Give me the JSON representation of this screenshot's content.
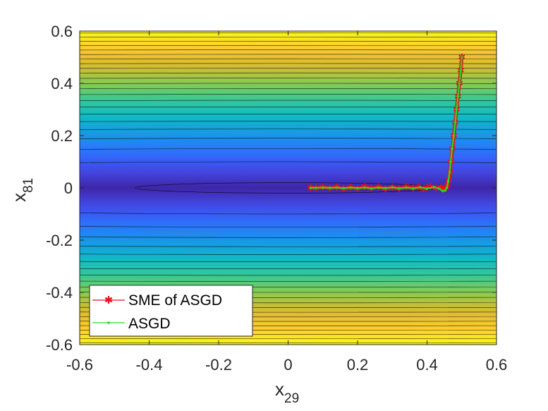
{
  "chart_data": {
    "type": "line",
    "plot_kind": "filled-contour-with-trajectories",
    "title": "",
    "xlabel": "x",
    "xlabel_sub": "29",
    "ylabel": "x",
    "ylabel_sub": "81",
    "xlim": [
      -0.6,
      0.6
    ],
    "ylim": [
      -0.6,
      0.6
    ],
    "xticks": [
      -0.6,
      -0.4,
      -0.2,
      0,
      0.2,
      0.4,
      0.6
    ],
    "yticks": [
      -0.6,
      -0.4,
      -0.2,
      0,
      0.2,
      0.4,
      0.6
    ],
    "xtick_labels": [
      "-0.6",
      "-0.4",
      "-0.2",
      "0",
      "0.2",
      "0.4",
      "0.6"
    ],
    "ytick_labels": [
      "-0.6",
      "-0.4",
      "-0.2",
      "0",
      "0.2",
      "0.4",
      "0.6"
    ],
    "grid": false,
    "legend_position": "bottom-left",
    "colormap": [
      "#3e26a8",
      "#4249e6",
      "#2e6ffe",
      "#1996e8",
      "#0fb7c8",
      "#31c99b",
      "#88cc50",
      "#d6ba2e",
      "#fcc932",
      "#f9fb15"
    ],
    "contour_line_color": "#000000",
    "contour_y_levels": [
      0.02,
      0.1,
      0.15,
      0.19,
      0.225,
      0.255,
      0.283,
      0.31,
      0.335,
      0.358,
      0.38,
      0.4,
      0.42,
      0.44,
      0.458,
      0.476,
      0.494,
      0.511,
      0.528,
      0.545,
      0.561,
      0.577,
      0.593
    ],
    "series": [
      {
        "name": "SME of ASGD",
        "color": "#e8101a",
        "marker": "*",
        "x": [
          0.5,
          0.497,
          0.493,
          0.489,
          0.485,
          0.481,
          0.477,
          0.473,
          0.469,
          0.466,
          0.462,
          0.458,
          0.455,
          0.45,
          0.44,
          0.425,
          0.41,
          0.4,
          0.39,
          0.375,
          0.36,
          0.34,
          0.32,
          0.3,
          0.28,
          0.26,
          0.24,
          0.22,
          0.2,
          0.18,
          0.16,
          0.14,
          0.12,
          0.1,
          0.08,
          0.065
        ],
        "y": [
          0.5,
          0.45,
          0.4,
          0.35,
          0.3,
          0.25,
          0.2,
          0.15,
          0.1,
          0.06,
          0.03,
          0.01,
          0.0,
          -0.005,
          0.002,
          -0.002,
          0.004,
          0.001,
          -0.004,
          0.003,
          -0.002,
          0.004,
          -0.003,
          0.002,
          -0.004,
          0.003,
          -0.002,
          0.004,
          -0.003,
          0.002,
          -0.004,
          0.003,
          -0.002,
          0.003,
          -0.002,
          0.0
        ]
      },
      {
        "name": "ASGD",
        "color": "#22dd22",
        "marker": ".",
        "x": [
          0.5,
          0.497,
          0.493,
          0.489,
          0.485,
          0.481,
          0.477,
          0.472,
          0.468,
          0.465,
          0.461,
          0.457,
          0.452,
          0.445,
          0.435,
          0.42,
          0.4,
          0.38,
          0.36,
          0.34,
          0.32,
          0.3,
          0.28,
          0.26,
          0.24,
          0.22,
          0.2,
          0.18,
          0.16,
          0.14,
          0.12,
          0.1,
          0.08,
          0.065
        ],
        "y": [
          0.5,
          0.45,
          0.4,
          0.35,
          0.3,
          0.25,
          0.2,
          0.15,
          0.1,
          0.06,
          0.025,
          0.0,
          -0.01,
          -0.012,
          -0.003,
          0.003,
          -0.003,
          0.002,
          -0.002,
          0.001,
          -0.002,
          0.002,
          -0.001,
          0.001,
          -0.002,
          0.001,
          -0.001,
          0.001,
          -0.001,
          0.001,
          0.0,
          0.001,
          0.0,
          0.0
        ]
      }
    ]
  }
}
